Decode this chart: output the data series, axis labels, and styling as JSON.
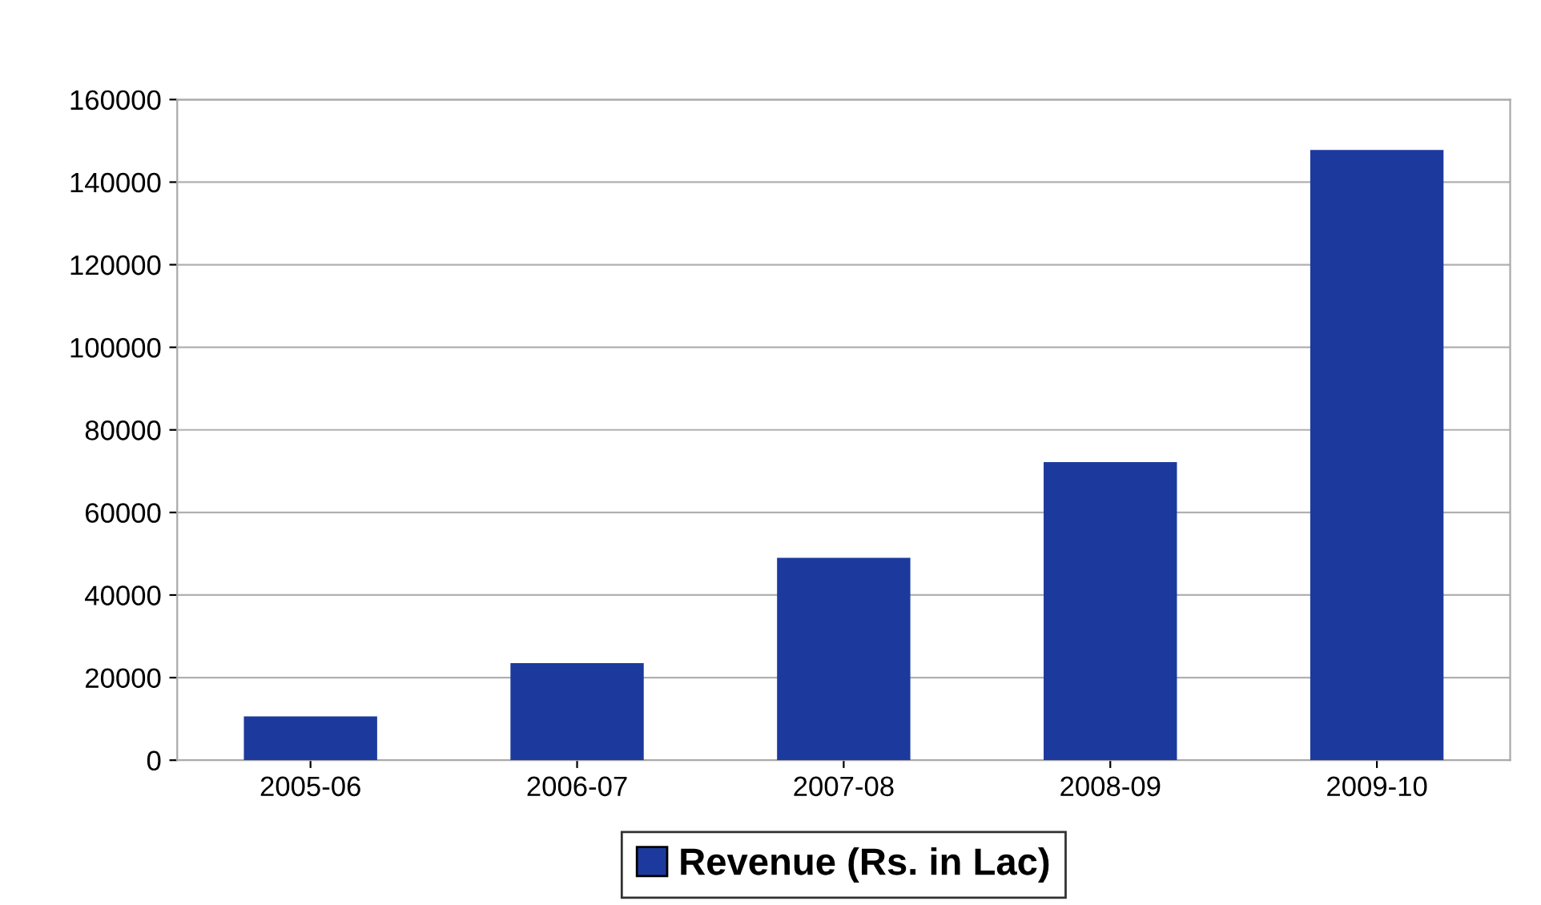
{
  "chart_data": {
    "type": "bar",
    "categories": [
      "2005-06",
      "2006-07",
      "2007-08",
      "2008-09",
      "2009-10"
    ],
    "series": [
      {
        "name": "Revenue (Rs. in Lac)",
        "color": "#1c3a9e",
        "values": [
          10600,
          23500,
          49000,
          72200,
          147800
        ]
      }
    ],
    "ylim": [
      0,
      160000
    ],
    "yticks": [
      0,
      20000,
      40000,
      60000,
      80000,
      100000,
      120000,
      140000,
      160000
    ],
    "grid": "y",
    "legend": "bottom"
  }
}
